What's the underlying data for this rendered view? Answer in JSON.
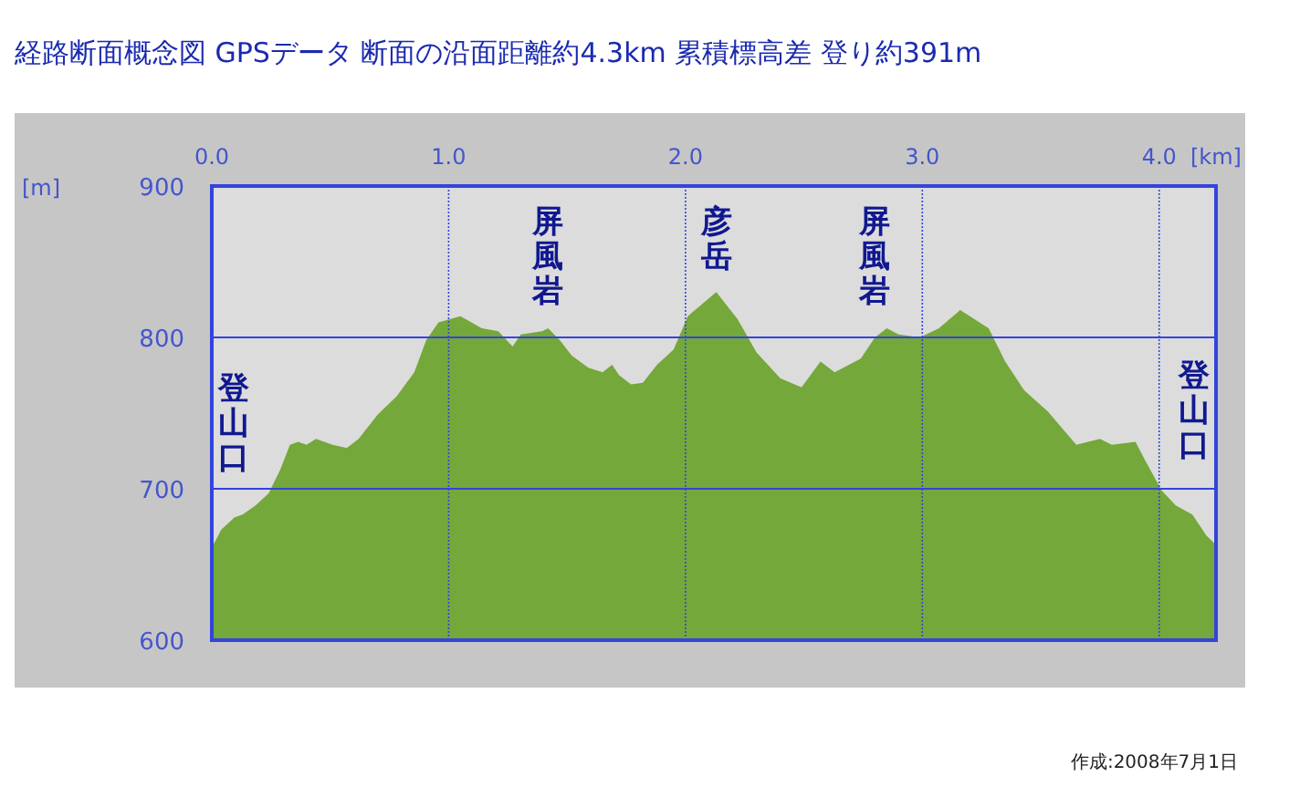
{
  "chart_data": {
    "type": "area",
    "title": "経路断面概念図 GPSデータ 断面の沿面距離約4.3km 累積標高差 登り約391m",
    "xlabel": "[km]",
    "ylabel": "[m]",
    "x": [
      0,
      0.04,
      0.095,
      0.13,
      0.185,
      0.24,
      0.29,
      0.33,
      0.365,
      0.4,
      0.44,
      0.51,
      0.57,
      0.62,
      0.7,
      0.78,
      0.855,
      0.905,
      0.957,
      1.05,
      1.14,
      1.21,
      1.27,
      1.305,
      1.395,
      1.42,
      1.47,
      1.52,
      1.59,
      1.65,
      1.69,
      1.72,
      1.77,
      1.82,
      1.88,
      1.95,
      2.01,
      2.04,
      2.13,
      2.22,
      2.3,
      2.4,
      2.49,
      2.57,
      2.63,
      2.74,
      2.8,
      2.85,
      2.9,
      2.99,
      3.07,
      3.16,
      3.28,
      3.35,
      3.43,
      3.53,
      3.65,
      3.75,
      3.8,
      3.9,
      3.94,
      4.01,
      4.07,
      4.14,
      4.2,
      4.24
    ],
    "values": [
      661,
      673,
      681,
      683,
      689,
      697,
      713,
      729,
      731,
      729,
      733,
      729,
      727,
      733,
      749,
      761,
      777,
      798,
      810,
      814,
      806,
      804,
      794,
      802,
      804,
      806,
      798,
      788,
      780,
      777,
      782,
      775,
      769,
      770,
      782,
      792,
      814,
      818,
      830,
      812,
      790,
      773,
      767,
      784,
      777,
      786,
      800,
      806,
      802,
      800,
      806,
      818,
      806,
      784,
      765,
      751,
      729,
      733,
      729,
      731,
      719,
      699,
      689,
      683,
      669,
      663
    ],
    "color": "#74a83a",
    "xlim": [
      0,
      4.24
    ],
    "ylim": [
      600,
      900
    ],
    "xticks": [
      {
        "value": 0,
        "label": "0.0"
      },
      {
        "value": 1,
        "label": "1.0"
      },
      {
        "value": 2,
        "label": "2.0"
      },
      {
        "value": 3,
        "label": "3.0"
      },
      {
        "value": 4,
        "label": "4.0"
      }
    ],
    "yticks": [
      600,
      700,
      800,
      900
    ],
    "grid": true,
    "annotations": [
      {
        "text": "登山口",
        "x": 0,
        "y": 661
      },
      {
        "text": "屏風岩",
        "x": 1.42,
        "y": 806
      },
      {
        "text": "彦岳",
        "x": 2.13,
        "y": 830
      },
      {
        "text": "屏風岩",
        "x": 2.8,
        "y": 800
      },
      {
        "text": "登山口",
        "x": 4.2,
        "y": 669
      },
      "作成:2008年7月1日"
    ]
  }
}
